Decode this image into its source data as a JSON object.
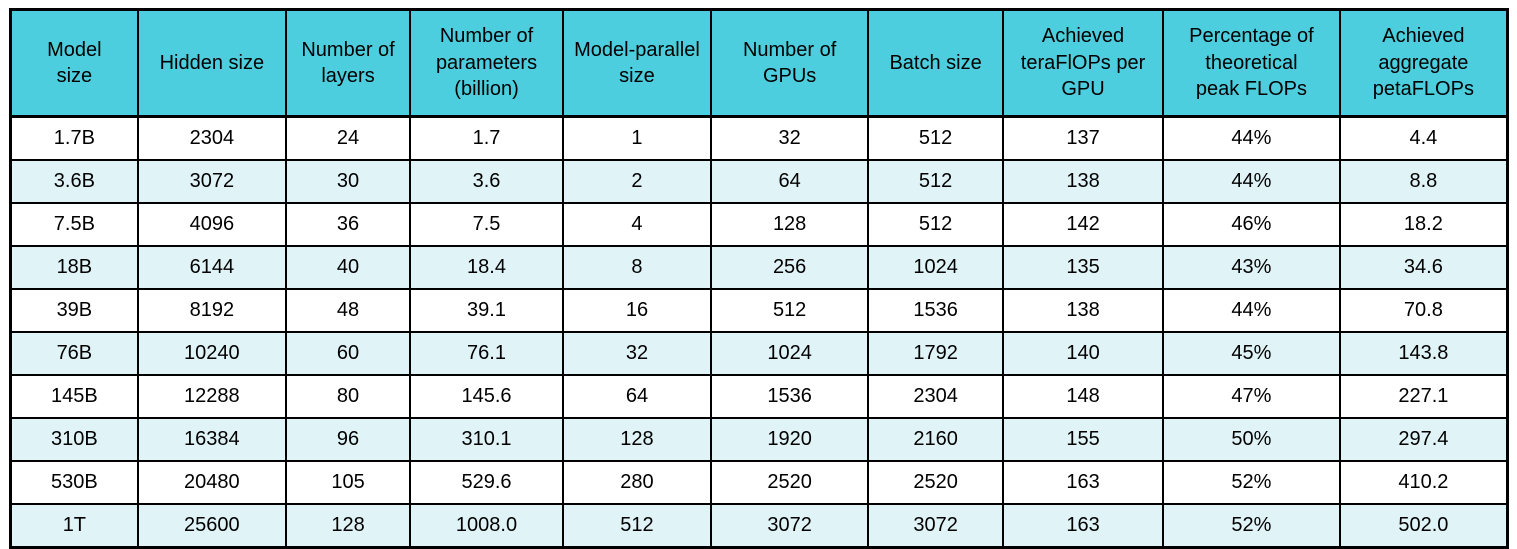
{
  "chart_data": {
    "type": "table",
    "title": "",
    "columns": [
      {
        "id": "model-size",
        "label": "Model\nsize"
      },
      {
        "id": "hidden-size",
        "label": "Hidden size"
      },
      {
        "id": "number-of-layers",
        "label": "Number of\nlayers"
      },
      {
        "id": "number-of-parameters-billion",
        "label": "Number of\nparameters\n(billion)"
      },
      {
        "id": "model-parallel-size",
        "label": "Model-parallel\nsize"
      },
      {
        "id": "number-of-gpus",
        "label": "Number of\nGPUs"
      },
      {
        "id": "batch-size",
        "label": "Batch size"
      },
      {
        "id": "achieved-teraflops-per-gpu",
        "label": "Achieved\nteraFlOPs per\nGPU"
      },
      {
        "id": "percentage-of-theoretical-peak-flops",
        "label": "Percentage of\ntheoretical\npeak FLOPs"
      },
      {
        "id": "achieved-aggregate-petaflops",
        "label": "Achieved\naggregate\npetaFLOPs"
      }
    ],
    "rows": [
      [
        "1.7B",
        "2304",
        "24",
        "1.7",
        "1",
        "32",
        "512",
        "137",
        "44%",
        "4.4"
      ],
      [
        "3.6B",
        "3072",
        "30",
        "3.6",
        "2",
        "64",
        "512",
        "138",
        "44%",
        "8.8"
      ],
      [
        "7.5B",
        "4096",
        "36",
        "7.5",
        "4",
        "128",
        "512",
        "142",
        "46%",
        "18.2"
      ],
      [
        "18B",
        "6144",
        "40",
        "18.4",
        "8",
        "256",
        "1024",
        "135",
        "43%",
        "34.6"
      ],
      [
        "39B",
        "8192",
        "48",
        "39.1",
        "16",
        "512",
        "1536",
        "138",
        "44%",
        "70.8"
      ],
      [
        "76B",
        "10240",
        "60",
        "76.1",
        "32",
        "1024",
        "1792",
        "140",
        "45%",
        "143.8"
      ],
      [
        "145B",
        "12288",
        "80",
        "145.6",
        "64",
        "1536",
        "2304",
        "148",
        "47%",
        "227.1"
      ],
      [
        "310B",
        "16384",
        "96",
        "310.1",
        "128",
        "1920",
        "2160",
        "155",
        "50%",
        "297.4"
      ],
      [
        "530B",
        "20480",
        "105",
        "529.6",
        "280",
        "2520",
        "2520",
        "163",
        "52%",
        "410.2"
      ],
      [
        "1T",
        "25600",
        "128",
        "1008.0",
        "512",
        "3072",
        "3072",
        "163",
        "52%",
        "502.0"
      ]
    ],
    "layout": {
      "grid": true,
      "striped_rows": true
    },
    "colors": {
      "header_bg": "#4dcede",
      "row_bg": "#ffffff",
      "row_alt_bg": "#e0f4f8",
      "border": "#000000",
      "text": "#000000"
    }
  }
}
